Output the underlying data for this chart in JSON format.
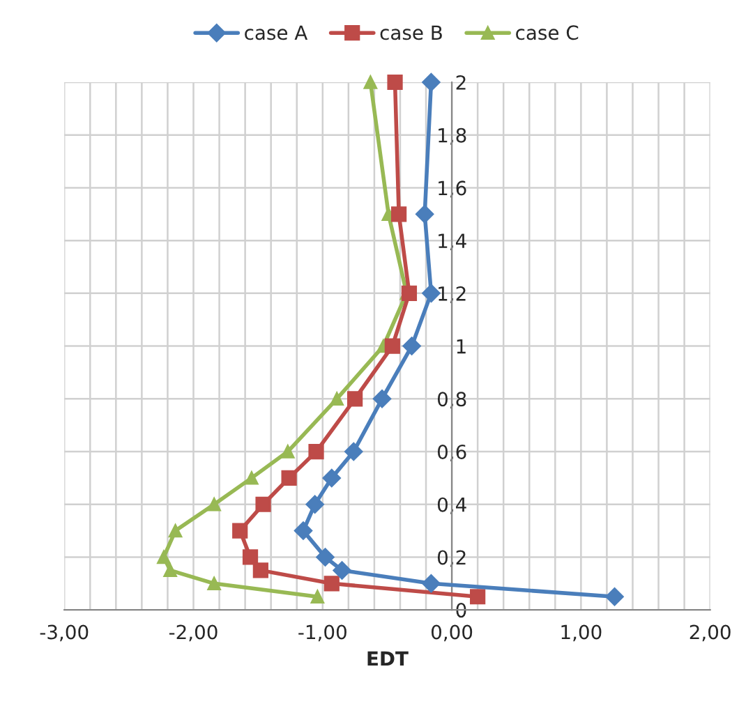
{
  "chart_data": {
    "type": "line",
    "xlabel": "EDT",
    "series": [
      {
        "name": "case A",
        "color": "#4a7ebb",
        "marker": "diamond",
        "x": [
          -0.16,
          -0.21,
          -0.16,
          -0.31,
          -0.54,
          -0.76,
          -0.93,
          -1.06,
          -1.15,
          -0.98,
          -0.85,
          -0.16,
          1.26
        ],
        "values": [
          2,
          1.5,
          1.2,
          1.0,
          0.8,
          0.6,
          0.5,
          0.4,
          0.3,
          0.2,
          0.15,
          0.1,
          0.05
        ]
      },
      {
        "name": "case B",
        "color": "#be4b48",
        "marker": "square",
        "x": [
          -0.44,
          -0.41,
          -0.33,
          -0.46,
          -0.75,
          -1.05,
          -1.26,
          -1.46,
          -1.64,
          -1.56,
          -1.48,
          -0.93,
          0.2
        ],
        "values": [
          2,
          1.5,
          1.2,
          1.0,
          0.8,
          0.6,
          0.5,
          0.4,
          0.3,
          0.2,
          0.15,
          0.1,
          0.05
        ]
      },
      {
        "name": "case C",
        "color": "#98b954",
        "marker": "triangle",
        "x": [
          -0.63,
          -0.49,
          -0.35,
          -0.53,
          -0.89,
          -1.27,
          -1.55,
          -1.84,
          -2.14,
          -2.23,
          -2.18,
          -1.84,
          -1.04
        ],
        "values": [
          2,
          1.5,
          1.2,
          1.0,
          0.8,
          0.6,
          0.5,
          0.4,
          0.3,
          0.2,
          0.15,
          0.1,
          0.05
        ]
      }
    ],
    "xlim": [
      -3,
      2
    ],
    "xticks": [
      {
        "value": -3,
        "label": "-3,00"
      },
      {
        "value": -2.8,
        "label": null
      },
      {
        "value": -2.6,
        "label": null
      },
      {
        "value": -2.4,
        "label": null
      },
      {
        "value": -2.2,
        "label": null
      },
      {
        "value": -2,
        "label": "-2,00"
      },
      {
        "value": -1.8,
        "label": null
      },
      {
        "value": -1.6,
        "label": null
      },
      {
        "value": -1.4,
        "label": null
      },
      {
        "value": -1.2,
        "label": null
      },
      {
        "value": -1,
        "label": "-1,00"
      },
      {
        "value": -0.8,
        "label": null
      },
      {
        "value": -0.6,
        "label": null
      },
      {
        "value": -0.4,
        "label": null
      },
      {
        "value": -0.2,
        "label": null
      },
      {
        "value": 0,
        "label": "0,00"
      },
      {
        "value": 0.2,
        "label": null
      },
      {
        "value": 0.4,
        "label": null
      },
      {
        "value": 0.6,
        "label": null
      },
      {
        "value": 0.8,
        "label": null
      },
      {
        "value": 1,
        "label": "1,00"
      },
      {
        "value": 1.2,
        "label": null
      },
      {
        "value": 1.4,
        "label": null
      },
      {
        "value": 1.6,
        "label": null
      },
      {
        "value": 1.8,
        "label": null
      },
      {
        "value": 2,
        "label": "2,00"
      }
    ],
    "ylim": [
      0,
      2
    ],
    "yticks": [
      0,
      {
        "value": 0.2,
        "label": "0,2"
      },
      {
        "value": 0.4,
        "label": "0,4"
      },
      {
        "value": 0.6,
        "label": "0,6"
      },
      {
        "value": 0.8,
        "label": "0,8"
      },
      1,
      {
        "value": 1.2,
        "label": "1,2"
      },
      {
        "value": 1.4,
        "label": "1,4"
      },
      {
        "value": 1.6,
        "label": "1,6"
      },
      {
        "value": 1.8,
        "label": "1,8"
      },
      2
    ],
    "grid": true,
    "legend": "top",
    "line_style": "solid"
  }
}
